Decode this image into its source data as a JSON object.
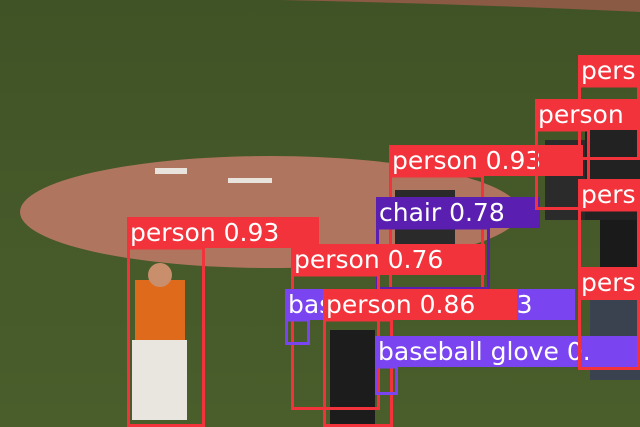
{
  "detections": [
    {
      "label": "person 0.93",
      "color": "#f2333b"
    },
    {
      "label": "person 0.93",
      "color": "#f2333b"
    },
    {
      "label": "chair 0.78",
      "color": "#5a1fb0"
    },
    {
      "label": "person 0.76",
      "color": "#f2333b"
    },
    {
      "label": "baseball glove 0.53",
      "color": "#7a45f0"
    },
    {
      "label": "person 0.86",
      "color": "#f2333b"
    },
    {
      "label": "baseball glove 0.",
      "color": "#7a45f0"
    },
    {
      "label": "pers",
      "color": "#f2333b"
    },
    {
      "label": "person",
      "color": "#f2333b"
    },
    {
      "label": "pers",
      "color": "#f2333b"
    },
    {
      "label": "pers",
      "color": "#f2333b"
    }
  ]
}
